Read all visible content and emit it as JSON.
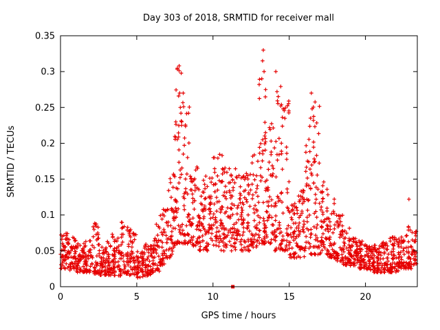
{
  "chart_data": {
    "type": "scatter",
    "title": "Day 303 of 2018, SRMTID for receiver mall",
    "xlabel": "GPS time / hours",
    "ylabel": "SRMTID / TECUs",
    "xlim": [
      0,
      23.4
    ],
    "ylim": [
      0,
      0.35
    ],
    "x_ticks": [
      0,
      5,
      10,
      15,
      20
    ],
    "x_tick_labels": [
      "0",
      "5",
      "10",
      "15",
      "20"
    ],
    "y_ticks": [
      0,
      0.05,
      0.1,
      0.15,
      0.2,
      0.25,
      0.3,
      0.35
    ],
    "y_tick_labels": [
      "0",
      "0.05",
      "0.1",
      "0.15",
      "0.2",
      "0.25",
      "0.3",
      "0.35"
    ],
    "grid": false,
    "legend": "none",
    "marker": "plus",
    "marker_color": "#e60000",
    "axis_color": "#000000",
    "background_color": "#ffffff",
    "description": "Dense scatter of SRMTID values vs GPS time; baseline ~0.02-0.07 TECUs during 0-6h and 19-23h, elevated activity 0.05-0.2 between 7h and 18h, with major spikes near 7.8h (0.31), 13.3h (0.33), 14.2h (0.30) and 16.5h (0.27). A single filled square marker sits on the x-axis near 11.3h at y=0.",
    "point_bins": [
      [
        0,
        0.5,
        45,
        0.025,
        0.075,
        1.5
      ],
      [
        0.5,
        1,
        45,
        0.022,
        0.07,
        1.5
      ],
      [
        1,
        1.5,
        45,
        0.02,
        0.06,
        1.4
      ],
      [
        1.5,
        2,
        45,
        0.02,
        0.065,
        1.5
      ],
      [
        2,
        2.5,
        45,
        0.018,
        0.09,
        2.0
      ],
      [
        2.5,
        3,
        45,
        0.016,
        0.06,
        1.4
      ],
      [
        3,
        3.5,
        45,
        0.016,
        0.075,
        1.8
      ],
      [
        3.5,
        4,
        45,
        0.015,
        0.07,
        1.7
      ],
      [
        4,
        4.5,
        45,
        0.018,
        0.09,
        2.0
      ],
      [
        4.5,
        5,
        45,
        0.016,
        0.08,
        1.9
      ],
      [
        5,
        5.5,
        45,
        0.012,
        0.05,
        1.2
      ],
      [
        5.5,
        6,
        45,
        0.015,
        0.06,
        1.3
      ],
      [
        6,
        6.5,
        45,
        0.02,
        0.09,
        1.6
      ],
      [
        6.5,
        7,
        45,
        0.03,
        0.11,
        1.6
      ],
      [
        7,
        7.5,
        45,
        0.04,
        0.16,
        1.7
      ],
      [
        7.5,
        8,
        55,
        0.06,
        0.305,
        1.8
      ],
      [
        8,
        8.5,
        50,
        0.06,
        0.26,
        2.0
      ],
      [
        8.5,
        9,
        45,
        0.055,
        0.17,
        1.4
      ],
      [
        9,
        9.5,
        45,
        0.05,
        0.15,
        1.4
      ],
      [
        9.5,
        10,
        45,
        0.05,
        0.16,
        1.4
      ],
      [
        10,
        10.5,
        45,
        0.055,
        0.185,
        1.4
      ],
      [
        10.5,
        11,
        45,
        0.05,
        0.18,
        1.5
      ],
      [
        11,
        11.5,
        45,
        0.05,
        0.165,
        1.4
      ],
      [
        11.5,
        12,
        45,
        0.05,
        0.155,
        1.4
      ],
      [
        12,
        12.5,
        45,
        0.05,
        0.16,
        1.4
      ],
      [
        12.5,
        13,
        45,
        0.055,
        0.185,
        1.5
      ],
      [
        13,
        13.5,
        55,
        0.06,
        0.325,
        1.9
      ],
      [
        13.5,
        14,
        45,
        0.06,
        0.23,
        1.7
      ],
      [
        14,
        14.5,
        50,
        0.05,
        0.3,
        1.9
      ],
      [
        14.5,
        15,
        45,
        0.05,
        0.26,
        1.9
      ],
      [
        15,
        15.5,
        45,
        0.04,
        0.12,
        1.4
      ],
      [
        15.5,
        16,
        45,
        0.04,
        0.135,
        1.4
      ],
      [
        16,
        16.5,
        45,
        0.045,
        0.24,
        1.8
      ],
      [
        16.5,
        17,
        45,
        0.045,
        0.27,
        1.9
      ],
      [
        17,
        17.5,
        45,
        0.045,
        0.15,
        1.5
      ],
      [
        17.5,
        18,
        45,
        0.04,
        0.13,
        1.5
      ],
      [
        18,
        18.5,
        45,
        0.035,
        0.1,
        1.4
      ],
      [
        18.5,
        19,
        45,
        0.03,
        0.085,
        1.4
      ],
      [
        19,
        19.5,
        45,
        0.028,
        0.07,
        1.4
      ],
      [
        19.5,
        20,
        45,
        0.025,
        0.065,
        1.4
      ],
      [
        20,
        20.5,
        45,
        0.022,
        0.06,
        1.4
      ],
      [
        20.5,
        21,
        45,
        0.02,
        0.06,
        1.4
      ],
      [
        21,
        21.5,
        45,
        0.02,
        0.065,
        1.4
      ],
      [
        21.5,
        22,
        45,
        0.02,
        0.07,
        1.5
      ],
      [
        22,
        22.5,
        45,
        0.022,
        0.07,
        1.5
      ],
      [
        22.5,
        23,
        45,
        0.025,
        0.085,
        1.5
      ],
      [
        23,
        23.35,
        30,
        0.03,
        0.09,
        1.4
      ]
    ],
    "outlier_points": [
      [
        7.78,
        0.308
      ],
      [
        7.82,
        0.27
      ],
      [
        7.86,
        0.25
      ],
      [
        7.9,
        0.242
      ],
      [
        7.95,
        0.23
      ],
      [
        8.05,
        0.27
      ],
      [
        13.3,
        0.33
      ],
      [
        13.25,
        0.315
      ],
      [
        13.35,
        0.3
      ],
      [
        13.2,
        0.29
      ],
      [
        14.12,
        0.3
      ],
      [
        14.2,
        0.272
      ],
      [
        14.45,
        0.252
      ],
      [
        14.6,
        0.248
      ],
      [
        16.45,
        0.27
      ],
      [
        16.5,
        0.248
      ],
      [
        16.4,
        0.235
      ],
      [
        10.6,
        0.183
      ],
      [
        12.6,
        0.182
      ],
      [
        22.85,
        0.122
      ]
    ],
    "special_points": [
      {
        "x": 11.3,
        "y": 0,
        "style": "filled-square"
      }
    ]
  }
}
